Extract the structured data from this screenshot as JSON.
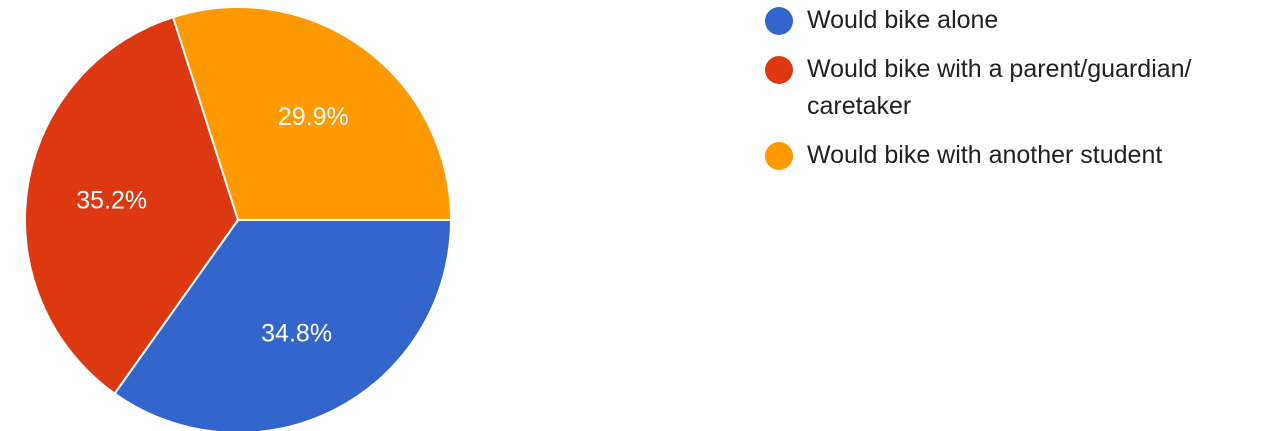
{
  "chart_data": {
    "type": "pie",
    "title": "",
    "legend_position": "right",
    "slices": [
      {
        "label": "Would bike alone",
        "value": 34.8,
        "display": "34.8%",
        "color": "#3366cc"
      },
      {
        "label": "Would bike with a parent/guardian/ caretaker",
        "value": 35.2,
        "display": "35.2%",
        "color": "#dc3912"
      },
      {
        "label": "Would bike with another student",
        "value": 29.9,
        "display": "29.9%",
        "color": "#ff9900"
      }
    ]
  }
}
